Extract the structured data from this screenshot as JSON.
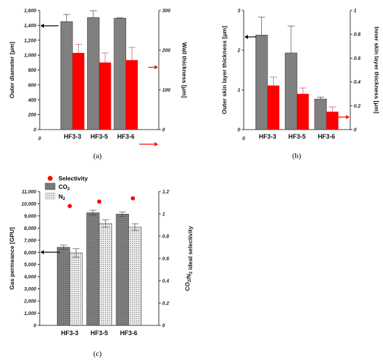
{
  "chart_data": [
    {
      "type": "bar",
      "panel_label": "(a)",
      "categories": [
        "HF3-3",
        "HF3-5",
        "HF3-6"
      ],
      "ylabel": "Outer diameter [μm]",
      "ylabel_right": "Wall thickness [μm]",
      "ylim": [
        0,
        1600
      ],
      "yticks": [
        "0",
        "200",
        "400",
        "600",
        "800",
        "1,000",
        "1,200",
        "1,400",
        "1,600"
      ],
      "ylim_right": [
        0,
        300
      ],
      "yticks_right": [
        "0",
        "100",
        "200",
        "300"
      ],
      "x_origin_label": "0",
      "series": [
        {
          "axis": "left",
          "color": "#808080",
          "values": [
            1450,
            1505,
            1495
          ],
          "errors": [
            95,
            90,
            10
          ]
        },
        {
          "axis": "right",
          "color": "#ff0000",
          "values": [
            193,
            169,
            175
          ],
          "errors": [
            22,
            24,
            32
          ]
        }
      ],
      "arrows": [
        "left",
        "right"
      ]
    },
    {
      "type": "bar",
      "panel_label": "(b)",
      "categories": [
        "HF3-3",
        "HF3-5",
        "HF3-6"
      ],
      "ylabel": "Outer skin layer thickness [μm]",
      "ylabel_right": "Inner skin layer thickness [μm]",
      "ylim": [
        0,
        3
      ],
      "yticks": [
        "0",
        "1",
        "2",
        "3"
      ],
      "ylim_right": [
        0,
        1
      ],
      "yticks_right": [
        "0",
        "0.2",
        "0.4",
        "0.6",
        "0.8",
        "1"
      ],
      "x_origin_label": "0",
      "series": [
        {
          "axis": "left",
          "color": "#808080",
          "values": [
            2.38,
            1.93,
            0.77
          ],
          "errors": [
            0.45,
            0.68,
            0.05
          ]
        },
        {
          "axis": "right",
          "color": "#ff0000",
          "values": [
            0.37,
            0.3,
            0.15
          ],
          "errors": [
            0.07,
            0.05,
            0.04
          ]
        }
      ],
      "arrows": [
        "left",
        "right"
      ]
    },
    {
      "type": "bar",
      "panel_label": "(c)",
      "categories": [
        "HF3-3",
        "HF3-5",
        "HF3-6"
      ],
      "ylabel": "Gas permeance [GPU]",
      "ylabel_right": "CO2/N2 ideal selectivity",
      "ylim": [
        0,
        11000
      ],
      "yticks": [
        "0",
        "1,000",
        "2,000",
        "3,000",
        "4,000",
        "5,000",
        "6,000",
        "7,000",
        "8,000",
        "9,000",
        "10,000",
        "11,000"
      ],
      "ylim_right": [
        0,
        1.2
      ],
      "yticks_right": [
        "0",
        "0.2",
        "0.4",
        "0.6",
        "0.8",
        "1",
        "1.2"
      ],
      "legend": {
        "selectivity": "Selectivity",
        "co2_main": "CO",
        "co2_sub": "2",
        "n2_main": "N",
        "n2_sub": "2"
      },
      "series": [
        {
          "name": "CO2",
          "axis": "left",
          "color": "#808080",
          "values": [
            6420,
            9260,
            9150
          ],
          "errors": [
            180,
            200,
            180
          ]
        },
        {
          "name": "N2",
          "axis": "left",
          "color": "#d9d9d9",
          "values": [
            5960,
            8370,
            8080
          ],
          "errors": [
            350,
            300,
            280
          ]
        },
        {
          "name": "Selectivity",
          "axis": "right",
          "color": "#ff0000",
          "type": "scatter",
          "values": [
            1.07,
            1.11,
            1.14
          ]
        }
      ],
      "arrows": [
        "left",
        "right"
      ]
    }
  ]
}
